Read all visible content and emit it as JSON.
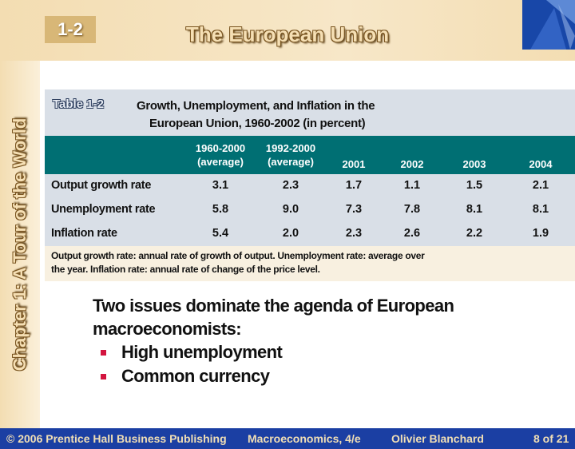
{
  "header": {
    "section": "1-2",
    "title": "The European Union"
  },
  "sidebar": {
    "chapter": "Chapter 1: A Tour of the World"
  },
  "table": {
    "label": "Table 1-2",
    "title_line1": "Growth, Unemployment, and Inflation in the",
    "title_line2": "European Union, 1960-2002 (in percent)",
    "columns": [
      [
        "1960-2000",
        "(average)"
      ],
      [
        "1992-2000",
        "(average)"
      ],
      [
        "2001"
      ],
      [
        "2002"
      ],
      [
        "2003"
      ],
      [
        "2004"
      ]
    ],
    "rows": [
      {
        "label": "Output growth rate",
        "values": [
          "3.1",
          "2.3",
          "1.7",
          "1.1",
          "1.5",
          "2.1"
        ]
      },
      {
        "label": "Unemployment rate",
        "values": [
          "5.8",
          "9.0",
          "7.3",
          "7.8",
          "8.1",
          "8.1"
        ]
      },
      {
        "label": "Inflation rate",
        "values": [
          "5.4",
          "2.0",
          "2.3",
          "2.6",
          "2.2",
          "1.9"
        ]
      }
    ],
    "note_line1": "Output growth rate:  annual rate of growth of output.  Unemployment rate:  average over",
    "note_line2": "the year.  Inflation rate:  annual rate of change of the price level."
  },
  "agenda": {
    "line1": "Two issues dominate the agenda of European",
    "line2": "macroeconomists:",
    "bullets": [
      "High unemployment",
      "Common currency"
    ],
    "bullet_color": "#d3153f"
  },
  "footer": {
    "copyright": "© 2006 Prentice Hall Business Publishing",
    "book": "Macroeconomics, 4/e",
    "author": "Olivier Blanchard",
    "page": "8 of 21"
  },
  "colors": {
    "table_header": "#006f73",
    "table_body": "#d9dfe7",
    "footer": "#1b3fa3",
    "band": "#f3ddb2"
  }
}
